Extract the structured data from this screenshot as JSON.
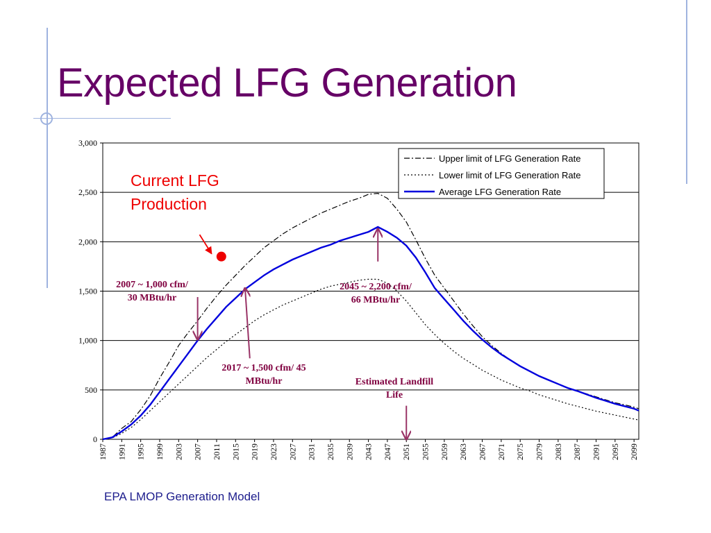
{
  "slide": {
    "title": "Expected LFG Generation",
    "source": "EPA LMOP Generation Model"
  },
  "colors": {
    "title": "#660066",
    "average_line": "#0000dd",
    "annotation": "#800040",
    "arrow": "#993366",
    "current_marker": "#ee0000",
    "current_label": "#ee0000",
    "source_text": "#1c1c8c"
  },
  "chart_data": {
    "type": "line",
    "ylim": [
      0,
      3000
    ],
    "xlim": [
      1987,
      2100
    ],
    "yticks": [
      0,
      500,
      1000,
      1500,
      2000,
      2500,
      3000
    ],
    "ytick_labels": [
      "0",
      "500",
      "1,000",
      "1,500",
      "2,000",
      "2,500",
      "3,000"
    ],
    "xticks": [
      1987,
      1991,
      1995,
      1999,
      2003,
      2007,
      2011,
      2015,
      2019,
      2023,
      2027,
      2031,
      2035,
      2039,
      2043,
      2047,
      2051,
      2055,
      2059,
      2063,
      2067,
      2071,
      2075,
      2079,
      2083,
      2087,
      2091,
      2095,
      2099
    ],
    "grid": "horizontal",
    "legend_position": "top-right",
    "series": [
      {
        "name": "Upper limit of LFG Generation Rate",
        "style": "dash-dot",
        "color": "#000000",
        "points": [
          [
            1987,
            0
          ],
          [
            1989,
            20
          ],
          [
            1991,
            110
          ],
          [
            1993,
            180
          ],
          [
            1995,
            300
          ],
          [
            1997,
            440
          ],
          [
            1999,
            620
          ],
          [
            2001,
            780
          ],
          [
            2003,
            950
          ],
          [
            2005,
            1080
          ],
          [
            2007,
            1200
          ],
          [
            2009,
            1330
          ],
          [
            2011,
            1450
          ],
          [
            2013,
            1560
          ],
          [
            2015,
            1660
          ],
          [
            2017,
            1760
          ],
          [
            2019,
            1850
          ],
          [
            2021,
            1940
          ],
          [
            2023,
            2010
          ],
          [
            2025,
            2080
          ],
          [
            2027,
            2140
          ],
          [
            2029,
            2190
          ],
          [
            2031,
            2240
          ],
          [
            2033,
            2290
          ],
          [
            2035,
            2330
          ],
          [
            2037,
            2370
          ],
          [
            2039,
            2410
          ],
          [
            2041,
            2440
          ],
          [
            2043,
            2480
          ],
          [
            2045,
            2490
          ],
          [
            2047,
            2440
          ],
          [
            2049,
            2330
          ],
          [
            2051,
            2200
          ],
          [
            2053,
            2020
          ],
          [
            2055,
            1830
          ],
          [
            2057,
            1660
          ],
          [
            2059,
            1530
          ],
          [
            2061,
            1400
          ],
          [
            2063,
            1270
          ],
          [
            2065,
            1150
          ],
          [
            2067,
            1040
          ],
          [
            2069,
            950
          ],
          [
            2071,
            870
          ],
          [
            2073,
            800
          ],
          [
            2075,
            740
          ],
          [
            2077,
            690
          ],
          [
            2079,
            640
          ],
          [
            2081,
            600
          ],
          [
            2083,
            560
          ],
          [
            2085,
            520
          ],
          [
            2087,
            490
          ],
          [
            2089,
            460
          ],
          [
            2091,
            430
          ],
          [
            2093,
            400
          ],
          [
            2095,
            370
          ],
          [
            2097,
            350
          ],
          [
            2099,
            325
          ],
          [
            2100,
            310
          ]
        ]
      },
      {
        "name": "Lower limit of LFG Generation Rate",
        "style": "dotted",
        "color": "#000000",
        "points": [
          [
            1987,
            0
          ],
          [
            1989,
            15
          ],
          [
            1991,
            60
          ],
          [
            1993,
            120
          ],
          [
            1995,
            200
          ],
          [
            1997,
            290
          ],
          [
            1999,
            380
          ],
          [
            2001,
            470
          ],
          [
            2003,
            560
          ],
          [
            2005,
            650
          ],
          [
            2007,
            740
          ],
          [
            2009,
            830
          ],
          [
            2011,
            910
          ],
          [
            2013,
            990
          ],
          [
            2015,
            1060
          ],
          [
            2017,
            1130
          ],
          [
            2019,
            1200
          ],
          [
            2021,
            1260
          ],
          [
            2023,
            1310
          ],
          [
            2025,
            1360
          ],
          [
            2027,
            1400
          ],
          [
            2029,
            1440
          ],
          [
            2031,
            1480
          ],
          [
            2033,
            1520
          ],
          [
            2035,
            1550
          ],
          [
            2037,
            1570
          ],
          [
            2039,
            1590
          ],
          [
            2041,
            1610
          ],
          [
            2043,
            1620
          ],
          [
            2045,
            1620
          ],
          [
            2047,
            1580
          ],
          [
            2049,
            1500
          ],
          [
            2051,
            1400
          ],
          [
            2053,
            1280
          ],
          [
            2055,
            1160
          ],
          [
            2057,
            1060
          ],
          [
            2059,
            970
          ],
          [
            2061,
            890
          ],
          [
            2063,
            820
          ],
          [
            2065,
            760
          ],
          [
            2067,
            700
          ],
          [
            2069,
            650
          ],
          [
            2071,
            600
          ],
          [
            2073,
            560
          ],
          [
            2075,
            520
          ],
          [
            2077,
            490
          ],
          [
            2079,
            450
          ],
          [
            2081,
            420
          ],
          [
            2083,
            390
          ],
          [
            2085,
            360
          ],
          [
            2087,
            335
          ],
          [
            2089,
            310
          ],
          [
            2091,
            285
          ],
          [
            2093,
            265
          ],
          [
            2095,
            245
          ],
          [
            2097,
            225
          ],
          [
            2099,
            205
          ],
          [
            2100,
            195
          ]
        ]
      },
      {
        "name": "Average LFG Generation Rate",
        "style": "solid",
        "color": "#0000dd",
        "points": [
          [
            1987,
            0
          ],
          [
            1989,
            20
          ],
          [
            1991,
            80
          ],
          [
            1993,
            150
          ],
          [
            1995,
            240
          ],
          [
            1997,
            350
          ],
          [
            1999,
            480
          ],
          [
            2001,
            610
          ],
          [
            2003,
            740
          ],
          [
            2005,
            870
          ],
          [
            2007,
            1000
          ],
          [
            2009,
            1120
          ],
          [
            2011,
            1230
          ],
          [
            2013,
            1340
          ],
          [
            2015,
            1430
          ],
          [
            2017,
            1520
          ],
          [
            2019,
            1590
          ],
          [
            2021,
            1660
          ],
          [
            2023,
            1720
          ],
          [
            2025,
            1770
          ],
          [
            2027,
            1820
          ],
          [
            2029,
            1860
          ],
          [
            2031,
            1900
          ],
          [
            2033,
            1940
          ],
          [
            2035,
            1970
          ],
          [
            2037,
            2010
          ],
          [
            2039,
            2040
          ],
          [
            2041,
            2070
          ],
          [
            2043,
            2100
          ],
          [
            2045,
            2150
          ],
          [
            2047,
            2100
          ],
          [
            2049,
            2040
          ],
          [
            2051,
            1960
          ],
          [
            2053,
            1840
          ],
          [
            2055,
            1690
          ],
          [
            2057,
            1530
          ],
          [
            2059,
            1420
          ],
          [
            2061,
            1310
          ],
          [
            2063,
            1200
          ],
          [
            2065,
            1100
          ],
          [
            2067,
            1010
          ],
          [
            2069,
            930
          ],
          [
            2071,
            860
          ],
          [
            2073,
            800
          ],
          [
            2075,
            740
          ],
          [
            2077,
            690
          ],
          [
            2079,
            640
          ],
          [
            2081,
            600
          ],
          [
            2083,
            560
          ],
          [
            2085,
            520
          ],
          [
            2087,
            490
          ],
          [
            2089,
            455
          ],
          [
            2091,
            420
          ],
          [
            2093,
            390
          ],
          [
            2095,
            360
          ],
          [
            2097,
            335
          ],
          [
            2099,
            310
          ],
          [
            2100,
            290
          ]
        ]
      }
    ],
    "annotations": [
      {
        "id": "current",
        "lines": [
          "Current LFG",
          "Production"
        ],
        "marker": [
          2012,
          1850
        ],
        "arrow_from": [
          2008,
          2100
        ]
      },
      {
        "id": "y2007",
        "lines": [
          "2007 ~ 1,000 cfm/",
          "30 MBtu/hr"
        ],
        "arrow_from": [
          2007,
          1440
        ],
        "arrow_to": [
          2007,
          1010
        ]
      },
      {
        "id": "y2017",
        "lines": [
          "2017 ~ 1,500 cfm/ 45",
          "MBtu/hr"
        ],
        "arrow_from": [
          2018,
          820
        ],
        "arrow_to": [
          2017,
          1530
        ]
      },
      {
        "id": "y2045",
        "lines": [
          "2045 ~ 2,200 cfm/",
          "66 MBtu/hr"
        ],
        "arrow_from": [
          2045,
          1800
        ],
        "arrow_to": [
          2045,
          2130
        ]
      },
      {
        "id": "life",
        "lines": [
          "Estimated Landfill",
          "Life"
        ],
        "arrow_from": [
          2051,
          340
        ],
        "arrow_to": [
          2051,
          0
        ]
      }
    ]
  }
}
